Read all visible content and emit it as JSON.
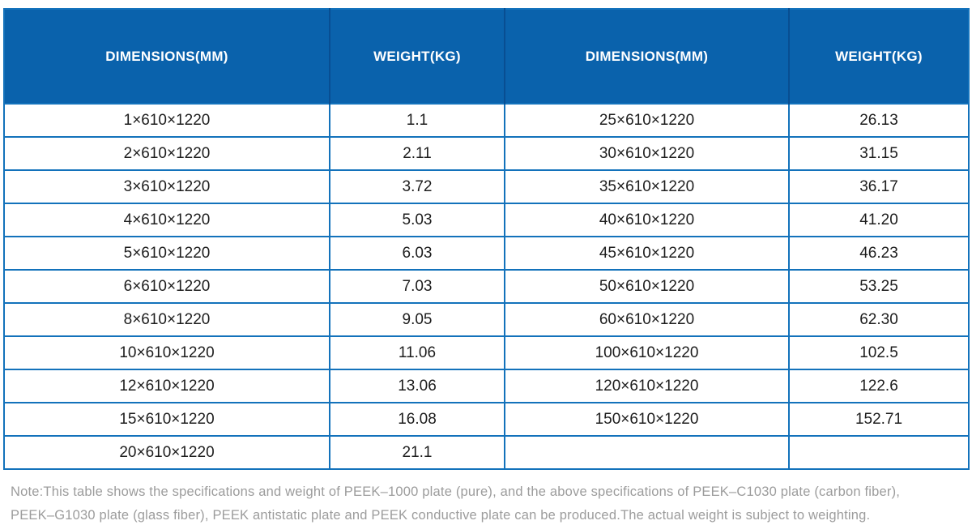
{
  "table": {
    "headers": [
      "DIMENSIONS(MM)",
      "WEIGHT(KG)",
      "DIMENSIONS(MM)",
      "WEIGHT(KG)"
    ],
    "rows": [
      [
        "1×610×1220",
        "1.1",
        "25×610×1220",
        "26.13"
      ],
      [
        "2×610×1220",
        "2.11",
        "30×610×1220",
        "31.15"
      ],
      [
        "3×610×1220",
        "3.72",
        "35×610×1220",
        "36.17"
      ],
      [
        "4×610×1220",
        "5.03",
        "40×610×1220",
        "41.20"
      ],
      [
        "5×610×1220",
        "6.03",
        "45×610×1220",
        "46.23"
      ],
      [
        "6×610×1220",
        "7.03",
        "50×610×1220",
        "53.25"
      ],
      [
        "8×610×1220",
        "9.05",
        "60×610×1220",
        "62.30"
      ],
      [
        "10×610×1220",
        "11.06",
        "100×610×1220",
        "102.5"
      ],
      [
        "12×610×1220",
        "13.06",
        "120×610×1220",
        "122.6"
      ],
      [
        "15×610×1220",
        "16.08",
        "150×610×1220",
        "152.71"
      ],
      [
        "20×610×1220",
        "21.1",
        "",
        ""
      ]
    ]
  },
  "note": {
    "lines": [
      "Note:This table shows the specifications and weight of PEEK–1000 plate (pure), and the above specifications of PEEK–C1030 plate (carbon fiber),",
      "PEEK–G1030 plate (glass fiber), PEEK antistatic plate and PEEK conductive plate can be produced.The actual weight is subject to weighting."
    ]
  },
  "colors": {
    "header_background": "#0A62AC",
    "header_text": "#FFFFFF",
    "header_divider": "#084E92",
    "table_border": "#1372BB",
    "cell_text": "#1D1D1D",
    "note_text": "#9C9C9C"
  }
}
